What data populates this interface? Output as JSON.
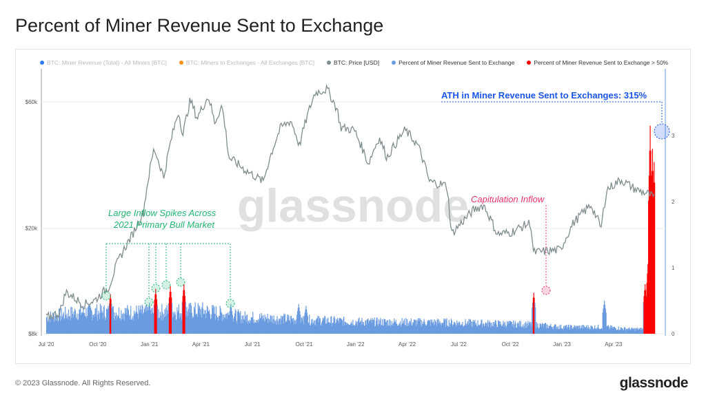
{
  "title": "Percent of Miner Revenue Sent to Exchange",
  "legend": [
    {
      "label": "BTC: Miner Revenue (Total) - All Miners [BTC]",
      "color": "#2f7cf6",
      "faded": true
    },
    {
      "label": "BTC: Miners to Exchanges - All Exchanges [BTC]",
      "color": "#f7931a",
      "faded": true
    },
    {
      "label": "BTC: Price [USD]",
      "color": "#7f8c8d",
      "faded": false
    },
    {
      "label": "Percent of Miner Revenue Sent to Exchange",
      "color": "#6a9be0",
      "faded": false
    },
    {
      "label": "Percent of Miner Revenue Sent to Exchange > 50%",
      "color": "#ff0000",
      "faded": false
    }
  ],
  "footer": "© 2023 Glassnode. All Rights Reserved.",
  "brand": "glassnode",
  "watermark": "glassnode",
  "chart_data": {
    "type": "line+bar",
    "x_ticks": [
      "Jul '20",
      "Oct '20",
      "Jan '21",
      "Apr '21",
      "Jul '21",
      "Oct '21",
      "Jan '22",
      "Apr '22",
      "Jul '22",
      "Oct '22",
      "Jan '23",
      "Apr '23"
    ],
    "y_left": {
      "label": "BTC: Price [USD]",
      "scale": "log",
      "ticks": [
        "$8k",
        "$20k",
        "$60k"
      ],
      "tick_values": [
        8000,
        20000,
        60000
      ]
    },
    "y_right": {
      "label": "Percent",
      "ticks": [
        "0",
        "1",
        "2",
        "3"
      ],
      "tick_values": [
        0,
        1,
        2,
        3
      ]
    },
    "price_series": [
      [
        "2020-07-01",
        9200
      ],
      [
        "2020-07-25",
        9600
      ],
      [
        "2020-08-05",
        11500
      ],
      [
        "2020-09-05",
        10300
      ],
      [
        "2020-09-25",
        10700
      ],
      [
        "2020-10-20",
        12000
      ],
      [
        "2020-11-05",
        15000
      ],
      [
        "2020-12-01",
        19000
      ],
      [
        "2020-12-20",
        23000
      ],
      [
        "2021-01-08",
        40000
      ],
      [
        "2021-01-25",
        31000
      ],
      [
        "2021-02-20",
        55000
      ],
      [
        "2021-02-28",
        45000
      ],
      [
        "2021-03-13",
        61000
      ],
      [
        "2021-03-25",
        52000
      ],
      [
        "2021-04-14",
        63000
      ],
      [
        "2021-04-25",
        50000
      ],
      [
        "2021-05-08",
        58000
      ],
      [
        "2021-05-20",
        37000
      ],
      [
        "2021-06-20",
        33000
      ],
      [
        "2021-07-20",
        30000
      ],
      [
        "2021-08-20",
        48000
      ],
      [
        "2021-09-07",
        51000
      ],
      [
        "2021-09-22",
        41000
      ],
      [
        "2021-10-20",
        65000
      ],
      [
        "2021-11-10",
        67000
      ],
      [
        "2021-11-28",
        56000
      ],
      [
        "2021-12-04",
        48000
      ],
      [
        "2021-12-28",
        47000
      ],
      [
        "2022-01-22",
        35000
      ],
      [
        "2022-02-10",
        44000
      ],
      [
        "2022-02-24",
        37000
      ],
      [
        "2022-03-28",
        47000
      ],
      [
        "2022-04-20",
        41000
      ],
      [
        "2022-05-10",
        30000
      ],
      [
        "2022-06-10",
        29000
      ],
      [
        "2022-06-18",
        19000
      ],
      [
        "2022-07-28",
        23500
      ],
      [
        "2022-08-14",
        24500
      ],
      [
        "2022-09-07",
        19000
      ],
      [
        "2022-10-01",
        19300
      ],
      [
        "2022-11-05",
        21000
      ],
      [
        "2022-11-10",
        16200
      ],
      [
        "2022-12-28",
        16600
      ],
      [
        "2023-01-20",
        21000
      ],
      [
        "2023-02-20",
        24500
      ],
      [
        "2023-03-10",
        20000
      ],
      [
        "2023-03-20",
        28000
      ],
      [
        "2023-04-14",
        30500
      ],
      [
        "2023-05-10",
        28000
      ],
      [
        "2023-06-01",
        27000
      ],
      [
        "2023-06-12",
        26000
      ]
    ],
    "percent_base": [
      [
        "2020-07-01",
        0.25
      ],
      [
        "2020-09-01",
        0.33
      ],
      [
        "2021-01-01",
        0.32
      ],
      [
        "2021-04-01",
        0.35
      ],
      [
        "2021-06-15",
        0.25
      ],
      [
        "2021-09-01",
        0.22
      ],
      [
        "2022-01-01",
        0.18
      ],
      [
        "2022-06-01",
        0.17
      ],
      [
        "2022-11-01",
        0.14
      ],
      [
        "2023-01-01",
        0.1
      ],
      [
        "2023-03-15",
        0.1
      ],
      [
        "2023-05-01",
        0.07
      ]
    ],
    "percent_spikes": [
      [
        "2020-10-22",
        0.6
      ],
      [
        "2020-12-30",
        0.47
      ],
      [
        "2021-01-10",
        0.68
      ],
      [
        "2021-02-05",
        0.72
      ],
      [
        "2021-03-01",
        0.75
      ],
      [
        "2021-05-23",
        0.45
      ],
      [
        "2021-09-20",
        0.45
      ],
      [
        "2021-10-03",
        0.42
      ],
      [
        "2022-11-10",
        0.62
      ],
      [
        "2023-03-15",
        0.5
      ],
      [
        "2023-05-26",
        0.75
      ],
      [
        "2023-06-01",
        1.2
      ],
      [
        "2023-06-04",
        3.15
      ],
      [
        "2023-06-08",
        2.8
      ],
      [
        "2023-06-11",
        2.6
      ]
    ],
    "threshold": 0.5,
    "annotations": [
      {
        "text": "ATH in Miner Revenue Sent to Exchanges: 315%",
        "color": "#1a55e8"
      },
      {
        "text": "Capitulation Inflow",
        "color": "#e8336d"
      },
      {
        "text": "Large Inflow Spikes Across",
        "color": "#22b573"
      },
      {
        "text": "2021 Primary Bull Market",
        "color": "#22b573"
      }
    ]
  }
}
